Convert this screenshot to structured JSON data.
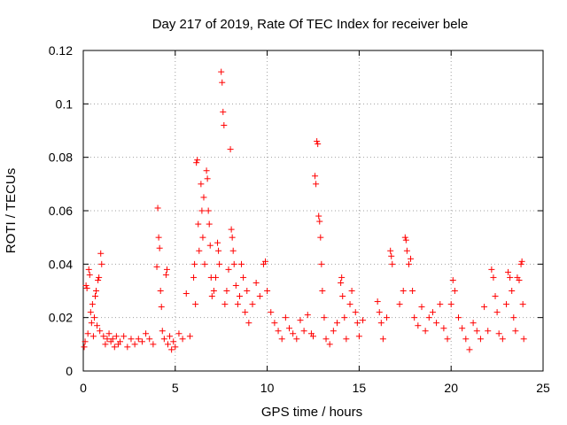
{
  "chart_data": {
    "type": "scatter",
    "title": "Day 217 of 2019, Rate Of TEC Index for receiver bele",
    "xlabel": "GPS time / hours",
    "ylabel": "ROTI / TECUs",
    "xlim": [
      0,
      25
    ],
    "ylim": [
      0,
      0.12
    ],
    "xticks": [
      "0",
      "5",
      "10",
      "15",
      "20",
      "25"
    ],
    "xtick_values": [
      0,
      5,
      10,
      15,
      20,
      25
    ],
    "yticks": [
      "0",
      "0.02",
      "0.04",
      "0.06",
      "0.08",
      "0.1",
      "0.12"
    ],
    "ytick_values": [
      0,
      0.02,
      0.04,
      0.06,
      0.08,
      0.1,
      0.12
    ],
    "grid": true,
    "marker": "plus",
    "color": "#ff0000",
    "series": [
      {
        "name": "ROTI",
        "points": [
          [
            0.05,
            0.009
          ],
          [
            0.1,
            0.011
          ],
          [
            0.15,
            0.032
          ],
          [
            0.2,
            0.031
          ],
          [
            0.25,
            0.014
          ],
          [
            0.3,
            0.038
          ],
          [
            0.35,
            0.036
          ],
          [
            0.4,
            0.022
          ],
          [
            0.45,
            0.018
          ],
          [
            0.5,
            0.025
          ],
          [
            0.55,
            0.013
          ],
          [
            0.6,
            0.02
          ],
          [
            0.65,
            0.028
          ],
          [
            0.7,
            0.03
          ],
          [
            0.75,
            0.017
          ],
          [
            0.8,
            0.034
          ],
          [
            0.85,
            0.035
          ],
          [
            0.9,
            0.015
          ],
          [
            0.95,
            0.044
          ],
          [
            1.0,
            0.04
          ],
          [
            1.1,
            0.013
          ],
          [
            1.2,
            0.01
          ],
          [
            1.3,
            0.012
          ],
          [
            1.4,
            0.014
          ],
          [
            1.5,
            0.011
          ],
          [
            1.6,
            0.012
          ],
          [
            1.7,
            0.009
          ],
          [
            1.8,
            0.013
          ],
          [
            1.9,
            0.01
          ],
          [
            2.0,
            0.011
          ],
          [
            2.2,
            0.013
          ],
          [
            2.4,
            0.009
          ],
          [
            2.6,
            0.012
          ],
          [
            2.8,
            0.01
          ],
          [
            3.0,
            0.012
          ],
          [
            3.2,
            0.011
          ],
          [
            3.4,
            0.014
          ],
          [
            3.6,
            0.012
          ],
          [
            3.8,
            0.01
          ],
          [
            4.0,
            0.039
          ],
          [
            4.05,
            0.061
          ],
          [
            4.1,
            0.05
          ],
          [
            4.15,
            0.046
          ],
          [
            4.2,
            0.03
          ],
          [
            4.25,
            0.024
          ],
          [
            4.3,
            0.015
          ],
          [
            4.4,
            0.012
          ],
          [
            4.5,
            0.036
          ],
          [
            4.55,
            0.038
          ],
          [
            4.6,
            0.01
          ],
          [
            4.7,
            0.013
          ],
          [
            4.8,
            0.008
          ],
          [
            4.9,
            0.011
          ],
          [
            5.0,
            0.009
          ],
          [
            5.2,
            0.014
          ],
          [
            5.4,
            0.012
          ],
          [
            5.6,
            0.029
          ],
          [
            5.8,
            0.013
          ],
          [
            6.0,
            0.035
          ],
          [
            6.05,
            0.04
          ],
          [
            6.1,
            0.025
          ],
          [
            6.15,
            0.078
          ],
          [
            6.2,
            0.079
          ],
          [
            6.25,
            0.055
          ],
          [
            6.3,
            0.045
          ],
          [
            6.4,
            0.07
          ],
          [
            6.45,
            0.06
          ],
          [
            6.5,
            0.05
          ],
          [
            6.55,
            0.065
          ],
          [
            6.6,
            0.04
          ],
          [
            6.7,
            0.075
          ],
          [
            6.75,
            0.072
          ],
          [
            6.8,
            0.06
          ],
          [
            6.85,
            0.055
          ],
          [
            6.9,
            0.047
          ],
          [
            6.95,
            0.035
          ],
          [
            7.0,
            0.028
          ],
          [
            7.1,
            0.03
          ],
          [
            7.2,
            0.035
          ],
          [
            7.3,
            0.048
          ],
          [
            7.35,
            0.045
          ],
          [
            7.4,
            0.04
          ],
          [
            7.5,
            0.112
          ],
          [
            7.55,
            0.108
          ],
          [
            7.6,
            0.097
          ],
          [
            7.65,
            0.092
          ],
          [
            7.7,
            0.025
          ],
          [
            7.8,
            0.03
          ],
          [
            7.9,
            0.038
          ],
          [
            8.0,
            0.083
          ],
          [
            8.05,
            0.053
          ],
          [
            8.1,
            0.05
          ],
          [
            8.15,
            0.045
          ],
          [
            8.2,
            0.04
          ],
          [
            8.3,
            0.032
          ],
          [
            8.4,
            0.025
          ],
          [
            8.5,
            0.028
          ],
          [
            8.6,
            0.04
          ],
          [
            8.7,
            0.035
          ],
          [
            8.8,
            0.022
          ],
          [
            8.9,
            0.03
          ],
          [
            9.0,
            0.018
          ],
          [
            9.2,
            0.025
          ],
          [
            9.4,
            0.033
          ],
          [
            9.6,
            0.028
          ],
          [
            9.8,
            0.04
          ],
          [
            9.9,
            0.041
          ],
          [
            10.0,
            0.03
          ],
          [
            10.2,
            0.022
          ],
          [
            10.4,
            0.018
          ],
          [
            10.6,
            0.015
          ],
          [
            10.8,
            0.012
          ],
          [
            11.0,
            0.02
          ],
          [
            11.2,
            0.016
          ],
          [
            11.4,
            0.014
          ],
          [
            11.6,
            0.012
          ],
          [
            11.8,
            0.019
          ],
          [
            12.0,
            0.015
          ],
          [
            12.2,
            0.021
          ],
          [
            12.4,
            0.014
          ],
          [
            12.5,
            0.013
          ],
          [
            12.6,
            0.073
          ],
          [
            12.65,
            0.07
          ],
          [
            12.7,
            0.086
          ],
          [
            12.75,
            0.085
          ],
          [
            12.8,
            0.058
          ],
          [
            12.85,
            0.056
          ],
          [
            12.9,
            0.05
          ],
          [
            12.95,
            0.04
          ],
          [
            13.0,
            0.03
          ],
          [
            13.1,
            0.02
          ],
          [
            13.2,
            0.012
          ],
          [
            13.4,
            0.01
          ],
          [
            13.6,
            0.015
          ],
          [
            13.8,
            0.018
          ],
          [
            14.0,
            0.033
          ],
          [
            14.05,
            0.035
          ],
          [
            14.1,
            0.028
          ],
          [
            14.2,
            0.02
          ],
          [
            14.3,
            0.012
          ],
          [
            14.5,
            0.025
          ],
          [
            14.6,
            0.03
          ],
          [
            14.8,
            0.022
          ],
          [
            14.9,
            0.018
          ],
          [
            15.0,
            0.013
          ],
          [
            15.2,
            0.019
          ],
          [
            16.0,
            0.026
          ],
          [
            16.1,
            0.022
          ],
          [
            16.2,
            0.018
          ],
          [
            16.3,
            0.012
          ],
          [
            16.5,
            0.02
          ],
          [
            16.7,
            0.045
          ],
          [
            16.75,
            0.043
          ],
          [
            16.8,
            0.04
          ],
          [
            17.2,
            0.025
          ],
          [
            17.4,
            0.03
          ],
          [
            17.5,
            0.05
          ],
          [
            17.55,
            0.049
          ],
          [
            17.6,
            0.045
          ],
          [
            17.7,
            0.04
          ],
          [
            17.8,
            0.042
          ],
          [
            17.9,
            0.03
          ],
          [
            18.0,
            0.02
          ],
          [
            18.2,
            0.017
          ],
          [
            18.4,
            0.024
          ],
          [
            18.6,
            0.015
          ],
          [
            18.8,
            0.02
          ],
          [
            19.0,
            0.022
          ],
          [
            19.2,
            0.018
          ],
          [
            19.4,
            0.025
          ],
          [
            19.6,
            0.016
          ],
          [
            19.8,
            0.012
          ],
          [
            20.0,
            0.025
          ],
          [
            20.1,
            0.034
          ],
          [
            20.2,
            0.03
          ],
          [
            20.4,
            0.02
          ],
          [
            20.6,
            0.016
          ],
          [
            20.8,
            0.012
          ],
          [
            21.0,
            0.008
          ],
          [
            21.2,
            0.018
          ],
          [
            21.4,
            0.015
          ],
          [
            21.6,
            0.012
          ],
          [
            21.8,
            0.024
          ],
          [
            22.0,
            0.015
          ],
          [
            22.2,
            0.038
          ],
          [
            22.3,
            0.035
          ],
          [
            22.4,
            0.028
          ],
          [
            22.5,
            0.022
          ],
          [
            22.6,
            0.014
          ],
          [
            22.8,
            0.012
          ],
          [
            23.0,
            0.025
          ],
          [
            23.1,
            0.037
          ],
          [
            23.2,
            0.035
          ],
          [
            23.3,
            0.03
          ],
          [
            23.4,
            0.02
          ],
          [
            23.5,
            0.015
          ],
          [
            23.6,
            0.035
          ],
          [
            23.7,
            0.034
          ],
          [
            23.8,
            0.04
          ],
          [
            23.85,
            0.041
          ],
          [
            23.9,
            0.025
          ],
          [
            23.95,
            0.012
          ]
        ]
      }
    ]
  }
}
